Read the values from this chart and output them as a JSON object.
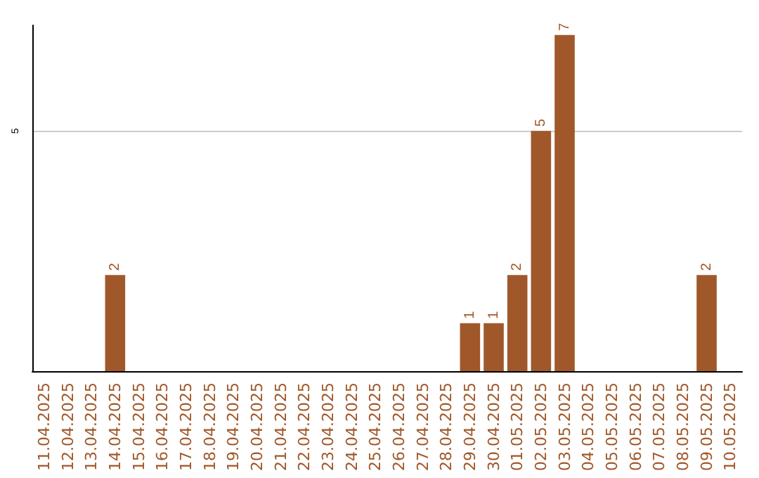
{
  "chart_data": {
    "type": "bar",
    "categories": [
      "11.04.2025",
      "12.04.2025",
      "13.04.2025",
      "14.04.2025",
      "15.04.2025",
      "16.04.2025",
      "17.04.2025",
      "18.04.2025",
      "19.04.2025",
      "20.04.2025",
      "21.04.2025",
      "22.04.2025",
      "23.04.2025",
      "24.04.2025",
      "25.04.2025",
      "26.04.2025",
      "27.04.2025",
      "28.04.2025",
      "29.04.2025",
      "30.04.2025",
      "01.05.2025",
      "02.05.2025",
      "03.05.2025",
      "04.05.2025",
      "05.05.2025",
      "06.05.2025",
      "07.05.2025",
      "08.05.2025",
      "09.05.2025",
      "10.05.2025"
    ],
    "values": [
      0,
      0,
      0,
      2,
      0,
      0,
      0,
      0,
      0,
      0,
      0,
      0,
      0,
      0,
      0,
      0,
      0,
      0,
      1,
      1,
      2,
      5,
      7,
      0,
      0,
      0,
      0,
      0,
      2,
      0
    ],
    "color": "#a0582a",
    "value_labels": [
      null,
      null,
      null,
      "2",
      null,
      null,
      null,
      null,
      null,
      null,
      null,
      null,
      null,
      null,
      null,
      null,
      null,
      null,
      "1",
      "1",
      "2",
      "5",
      "7",
      null,
      null,
      null,
      null,
      null,
      "2",
      null
    ],
    "ylim": [
      0,
      7.2
    ],
    "yticks": [
      5
    ],
    "grid": "y"
  }
}
